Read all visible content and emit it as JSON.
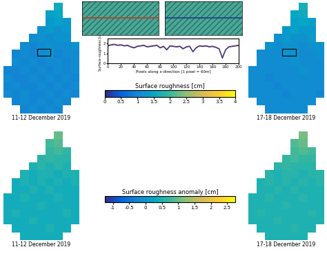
{
  "chart_data": [
    {
      "type": "heatmap",
      "colorbar": {
        "label": "Surface roughness [cm]",
        "range": [
          0,
          4
        ],
        "ticks": [
          0,
          0.5,
          1,
          1.5,
          2,
          2.5,
          3,
          3.5,
          4
        ]
      },
      "panels": [
        {
          "title": "11-12 December 2019",
          "cells": [
            [
              null,
              null,
              null,
              null,
              null,
              null,
              1.6,
              null,
              null
            ],
            [
              null,
              null,
              null,
              null,
              null,
              1.4,
              1.5,
              null,
              null
            ],
            [
              null,
              null,
              null,
              null,
              null,
              1.3,
              1.4,
              1.3,
              null
            ],
            [
              null,
              null,
              null,
              null,
              1.2,
              1.3,
              1.2,
              1.3,
              null
            ],
            [
              null,
              null,
              null,
              1.1,
              1.2,
              1.1,
              1.2,
              1.2,
              null
            ],
            [
              null,
              null,
              1.1,
              1.0,
              1.1,
              1.2,
              1.1,
              1.1,
              1.2
            ],
            [
              null,
              1.0,
              1.1,
              1.0,
              1.1,
              1.2,
              1.0,
              1.1,
              1.1
            ],
            [
              null,
              1.1,
              1.0,
              1.1,
              1.0,
              1.1,
              1.1,
              1.0,
              1.1
            ],
            [
              1.0,
              1.0,
              1.1,
              1.0,
              1.1,
              1.0,
              1.1,
              1.0,
              1.1
            ],
            [
              1.1,
              1.0,
              1.0,
              1.1,
              1.0,
              1.1,
              1.0,
              1.1,
              1.0
            ],
            [
              1.0,
              1.1,
              1.0,
              1.0,
              1.1,
              1.0,
              1.1,
              1.0,
              1.1
            ],
            [
              1.1,
              1.0,
              1.1,
              1.0,
              1.0,
              1.1,
              1.0,
              1.1,
              1.0
            ],
            [
              null,
              1.0,
              1.1,
              1.0,
              1.1,
              1.0,
              1.1,
              1.0,
              null
            ],
            [
              null,
              null,
              1.0,
              1.1,
              1.0,
              1.1,
              1.0,
              null,
              null
            ]
          ]
        },
        {
          "title": "17-18 December 2019",
          "cells": [
            [
              null,
              null,
              null,
              null,
              null,
              null,
              1.7,
              null,
              null
            ],
            [
              null,
              null,
              null,
              null,
              null,
              1.5,
              1.6,
              null,
              null
            ],
            [
              null,
              null,
              null,
              null,
              null,
              1.4,
              1.5,
              1.4,
              null
            ],
            [
              null,
              null,
              null,
              null,
              1.3,
              1.4,
              1.3,
              1.3,
              null
            ],
            [
              null,
              null,
              null,
              1.2,
              1.3,
              1.2,
              1.2,
              1.3,
              null
            ],
            [
              null,
              null,
              1.2,
              1.1,
              1.2,
              1.2,
              1.1,
              1.2,
              1.2
            ],
            [
              null,
              1.1,
              1.1,
              1.1,
              1.2,
              1.2,
              1.1,
              1.1,
              1.2
            ],
            [
              null,
              1.1,
              1.1,
              1.1,
              1.1,
              1.2,
              1.1,
              1.1,
              1.1
            ],
            [
              1.1,
              1.1,
              1.1,
              1.1,
              1.1,
              1.1,
              1.2,
              1.1,
              1.1
            ],
            [
              1.1,
              1.1,
              1.0,
              1.1,
              1.1,
              1.1,
              1.1,
              1.1,
              1.1
            ],
            [
              1.1,
              1.1,
              1.1,
              1.0,
              1.1,
              1.1,
              1.1,
              1.1,
              1.1
            ],
            [
              1.1,
              1.1,
              1.1,
              1.1,
              1.0,
              1.1,
              1.1,
              1.1,
              1.0
            ],
            [
              null,
              1.1,
              1.1,
              1.1,
              1.1,
              1.1,
              1.1,
              1.1,
              null
            ],
            [
              null,
              null,
              1.1,
              1.1,
              1.1,
              1.1,
              1.1,
              null,
              null
            ]
          ]
        }
      ]
    },
    {
      "type": "heatmap",
      "colorbar": {
        "label": "Surface roughness anomaly [cm]",
        "range": [
          -1.25,
          2.75
        ],
        "ticks": [
          -1,
          -0.5,
          0,
          0.5,
          1,
          1.5,
          2,
          2.5
        ]
      },
      "panels": [
        {
          "title": "11-12 December 2019",
          "cells": [
            [
              null,
              null,
              null,
              null,
              null,
              null,
              1.0,
              null,
              null
            ],
            [
              null,
              null,
              null,
              null,
              null,
              0.8,
              0.9,
              null,
              null
            ],
            [
              null,
              null,
              null,
              null,
              null,
              0.7,
              0.8,
              0.7,
              null
            ],
            [
              null,
              null,
              null,
              null,
              0.6,
              0.7,
              0.6,
              0.6,
              null
            ],
            [
              null,
              null,
              null,
              0.5,
              0.6,
              0.5,
              0.6,
              0.5,
              null
            ],
            [
              null,
              null,
              0.5,
              0.4,
              0.5,
              0.5,
              0.4,
              0.5,
              0.5
            ],
            [
              null,
              0.4,
              0.5,
              0.4,
              0.5,
              0.4,
              0.5,
              0.4,
              0.5
            ],
            [
              null,
              0.4,
              0.4,
              0.5,
              0.4,
              0.5,
              0.4,
              0.4,
              0.4
            ],
            [
              0.4,
              0.4,
              0.5,
              0.4,
              0.4,
              0.4,
              0.5,
              0.4,
              0.4
            ],
            [
              0.4,
              0.4,
              0.4,
              0.4,
              0.5,
              0.4,
              0.4,
              0.4,
              0.4
            ],
            [
              0.4,
              0.5,
              0.4,
              0.4,
              0.4,
              0.4,
              0.4,
              0.5,
              0.4
            ],
            [
              0.4,
              0.4,
              0.4,
              0.5,
              0.4,
              0.4,
              0.4,
              0.4,
              0.4
            ],
            [
              null,
              0.4,
              0.4,
              0.4,
              0.4,
              0.5,
              0.4,
              0.4,
              null
            ],
            [
              null,
              null,
              0.4,
              0.4,
              0.4,
              0.4,
              0.4,
              null,
              null
            ]
          ]
        },
        {
          "title": "17-18 December 2019",
          "cells": [
            [
              null,
              null,
              null,
              null,
              null,
              null,
              1.1,
              null,
              null
            ],
            [
              null,
              null,
              null,
              null,
              null,
              0.9,
              1.0,
              null,
              null
            ],
            [
              null,
              null,
              null,
              null,
              null,
              0.8,
              0.9,
              0.8,
              null
            ],
            [
              null,
              null,
              null,
              null,
              0.7,
              0.8,
              0.7,
              0.7,
              null
            ],
            [
              null,
              null,
              null,
              0.6,
              0.7,
              0.6,
              0.6,
              0.6,
              null
            ],
            [
              null,
              null,
              0.6,
              0.5,
              0.6,
              0.6,
              0.5,
              0.6,
              0.6
            ],
            [
              null,
              0.5,
              0.6,
              0.5,
              0.6,
              0.5,
              0.6,
              0.5,
              0.6
            ],
            [
              null,
              0.5,
              0.5,
              0.6,
              0.5,
              0.6,
              0.5,
              0.5,
              0.5
            ],
            [
              0.5,
              0.5,
              0.6,
              0.5,
              0.5,
              0.5,
              0.6,
              0.5,
              0.5
            ],
            [
              0.5,
              0.5,
              0.5,
              0.5,
              0.6,
              0.5,
              0.5,
              0.5,
              0.5
            ],
            [
              0.5,
              0.6,
              0.5,
              0.5,
              0.5,
              0.5,
              0.5,
              0.6,
              0.5
            ],
            [
              0.5,
              0.5,
              0.5,
              0.6,
              0.5,
              0.5,
              0.5,
              0.5,
              0.5
            ],
            [
              null,
              0.5,
              0.5,
              0.5,
              0.5,
              0.6,
              0.5,
              0.5,
              null
            ],
            [
              null,
              null,
              0.5,
              0.5,
              0.5,
              0.5,
              0.5,
              null,
              null
            ]
          ]
        }
      ]
    },
    {
      "type": "line",
      "x_label": "Pixels along x-direction [1 pixel = 60m]",
      "y_label": "Surface roughness [cm]",
      "x": [
        0,
        5,
        10,
        15,
        20,
        25,
        30,
        35,
        40,
        45,
        50,
        55,
        60,
        65,
        70,
        75,
        80,
        85,
        90,
        95,
        100,
        105,
        110,
        115,
        120,
        125,
        130,
        135,
        140,
        145,
        150,
        155,
        160,
        165,
        170,
        175,
        180,
        185,
        190,
        195,
        200
      ],
      "series": [
        {
          "color": "#c0392b",
          "values": [
            1.8,
            1.9,
            1.95,
            1.85,
            1.9,
            1.8,
            1.85,
            1.7,
            1.6,
            1.75,
            1.8,
            1.85,
            1.7,
            1.75,
            1.8,
            1.85,
            1.6,
            1.75,
            1.4,
            1.8,
            1.75,
            1.7,
            1.75,
            1.5,
            1.7,
            1.75,
            1.2,
            1.6,
            1.8,
            1.75,
            1.8,
            1.7,
            1.75,
            1.65,
            1.5,
            0.6,
            1.4,
            1.7,
            1.75,
            1.8,
            1.85
          ]
        },
        {
          "color": "#1f3a93",
          "values": [
            1.75,
            1.85,
            1.9,
            1.8,
            1.85,
            1.75,
            1.8,
            1.65,
            1.55,
            1.7,
            1.75,
            1.8,
            1.65,
            1.7,
            1.75,
            1.8,
            1.55,
            1.7,
            1.35,
            1.75,
            1.7,
            1.65,
            1.7,
            1.45,
            1.65,
            1.7,
            1.15,
            1.55,
            1.75,
            1.7,
            1.75,
            1.65,
            1.7,
            1.6,
            1.45,
            0.5,
            1.35,
            1.65,
            1.7,
            1.75,
            1.8
          ]
        }
      ],
      "xlim": [
        0,
        200
      ],
      "xticks": [
        0,
        20,
        40,
        60,
        80,
        100,
        120,
        140,
        160,
        180,
        200
      ],
      "ylim": [
        0,
        2.5
      ],
      "yticks": [
        0,
        1,
        2
      ]
    }
  ]
}
